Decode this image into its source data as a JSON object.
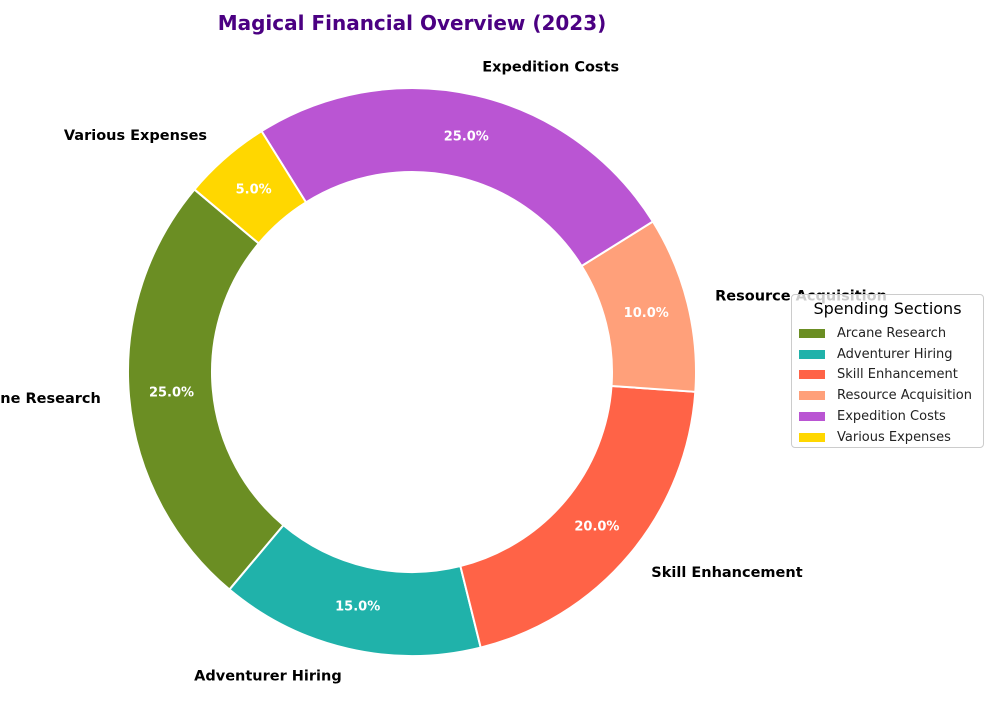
{
  "chart_data": {
    "type": "pie",
    "title": "Magical Financial Overview (2023)",
    "title_color": "#4B0082",
    "donut": true,
    "categories": [
      "Arcane Research",
      "Adventurer Hiring",
      "Skill Enhancement",
      "Resource Acquisition",
      "Expedition Costs",
      "Various Expenses"
    ],
    "values": [
      25,
      15,
      20,
      10,
      25,
      5
    ],
    "percent_labels": [
      "25.0%",
      "15.0%",
      "20.0%",
      "10.0%",
      "25.0%",
      "5.0%"
    ],
    "colors": [
      "#6B8E23",
      "#20B2AA",
      "#FF6347",
      "#FFA07A",
      "#BA55D3",
      "#FFD700"
    ],
    "legend": {
      "title": "Spending Sections",
      "placement": "right",
      "entries": [
        "Arcane Research",
        "Adventurer Hiring",
        "Skill Enhancement",
        "Resource Acquisition",
        "Expedition Costs",
        "Various Expenses"
      ]
    }
  }
}
